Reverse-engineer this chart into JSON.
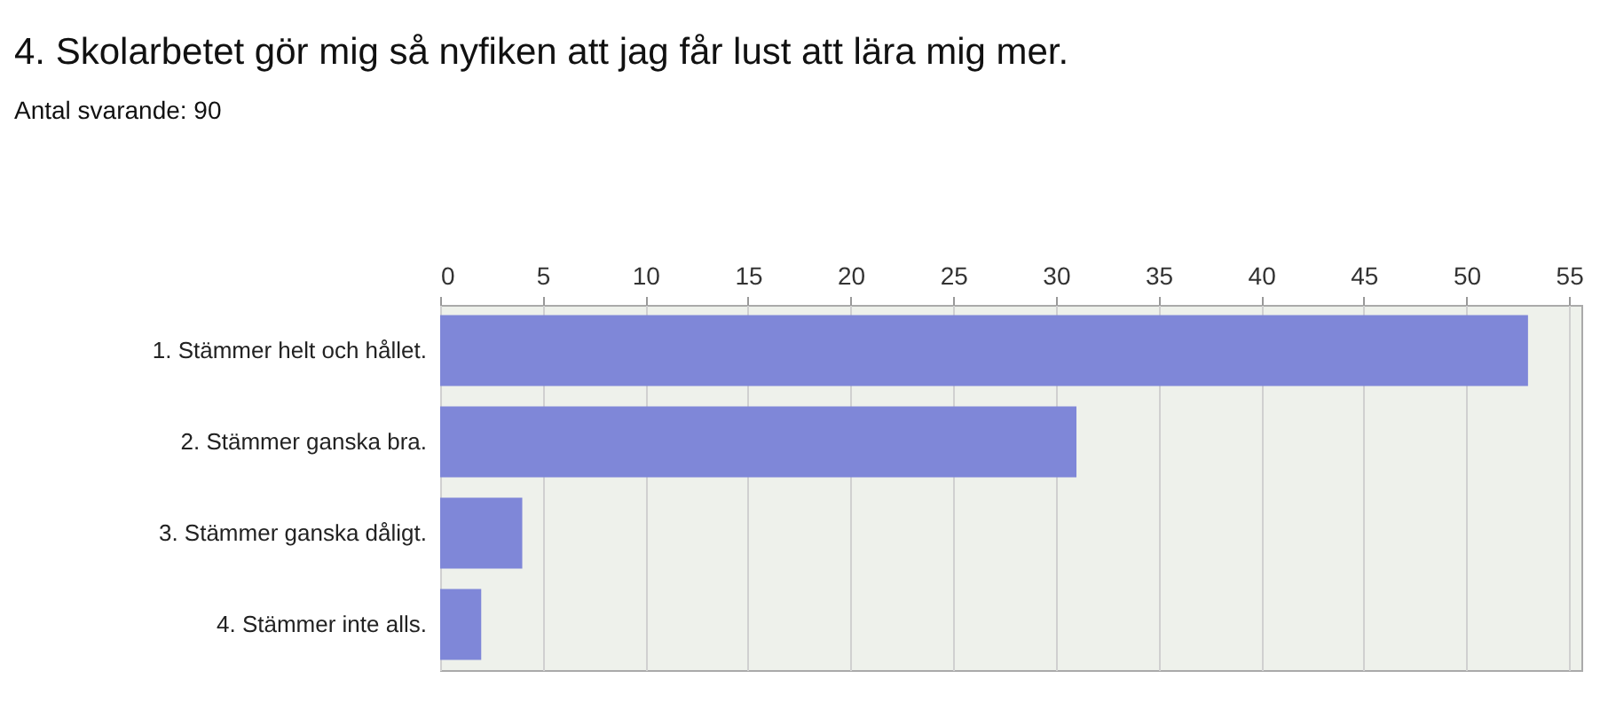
{
  "chart_data": {
    "type": "bar",
    "orientation": "horizontal",
    "title": "4. Skolarbetet gör mig så nyfiken att jag får lust att lära mig mer.",
    "subtitle": "Antal svarande: 90",
    "categories": [
      "1. Stämmer helt och hållet.",
      "2. Stämmer ganska bra.",
      "3. Stämmer ganska dåligt.",
      "4. Stämmer inte alls."
    ],
    "values": [
      53,
      31,
      4,
      2
    ],
    "color": "#7f87d8",
    "xlim": [
      0,
      55.6
    ],
    "xticks": [
      0,
      5,
      10,
      15,
      20,
      25,
      30,
      35,
      40,
      45,
      50,
      55
    ],
    "grid": "x"
  }
}
